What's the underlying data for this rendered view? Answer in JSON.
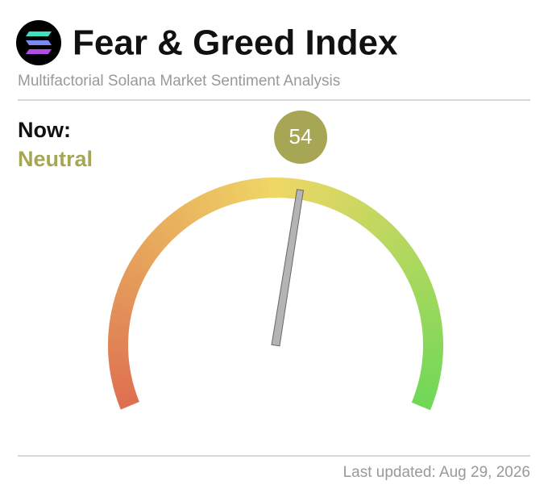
{
  "chart_data": {
    "type": "gauge",
    "title": "Fear & Greed Index",
    "subtitle": "Multifactorial Solana Market Sentiment Analysis",
    "now_label": "Now:",
    "status": "Neutral",
    "status_color": "#a6a655",
    "value": 54,
    "ylim": [
      0,
      100
    ],
    "colors": [
      "#de6f52",
      "#efd765",
      "#6fd857"
    ],
    "needle_color": "#b4b4b4",
    "footer": "Last updated: Aug 29, 2026"
  }
}
